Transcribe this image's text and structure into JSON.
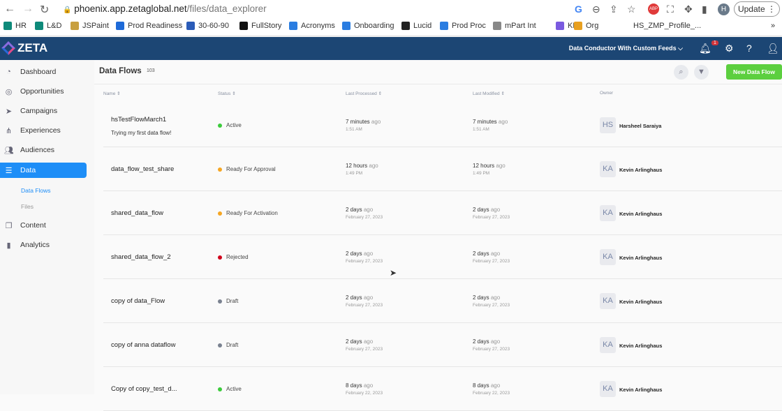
{
  "browser": {
    "url_host": "phoenix.app.zetaglobal.net",
    "url_path": "/files/data_explorer",
    "update_label": "Update",
    "profile_initial": "H",
    "bookmarks": [
      {
        "label": "HR",
        "color": "#0f8a7a"
      },
      {
        "label": "L&D",
        "color": "#0f8a7a"
      },
      {
        "label": "JSPaint",
        "color": "#c8a040"
      },
      {
        "label": "Prod Readiness",
        "color": "#1e6ad8"
      },
      {
        "label": "30-60-90",
        "color": "#2b5cb8"
      },
      {
        "label": "FullStory",
        "color": "#111111"
      },
      {
        "label": "Acronyms",
        "color": "#2a7de1"
      },
      {
        "label": "Onboarding",
        "color": "#2a7de1"
      },
      {
        "label": "Lucid",
        "color": "#222222"
      },
      {
        "label": "Prod Proc",
        "color": "#2a7de1"
      },
      {
        "label": "mPart Int",
        "color": "#888888"
      },
      {
        "label": "KB",
        "color": "#7a5ae0"
      },
      {
        "label": "Org",
        "color": "#e8a020"
      },
      {
        "label": "HS_ZMP_Profile_...",
        "color": "#ffffff"
      }
    ]
  },
  "app": {
    "logo": "ZETA",
    "account": "Data Conductor With Custom Feeds",
    "notification_count": "1",
    "brand_color": "#1c4674"
  },
  "sidebar": {
    "items": [
      {
        "label": "Dashboard",
        "icon": "gauge-icon"
      },
      {
        "label": "Opportunities",
        "icon": "target-icon"
      },
      {
        "label": "Campaigns",
        "icon": "paper-plane-icon"
      },
      {
        "label": "Experiences",
        "icon": "hierarchy-icon"
      },
      {
        "label": "Audiences",
        "icon": "people-icon"
      },
      {
        "label": "Data",
        "icon": "database-icon",
        "active": true
      },
      {
        "label": "Content",
        "icon": "copy-icon"
      },
      {
        "label": "Analytics",
        "icon": "bar-chart-icon"
      }
    ],
    "subitems": [
      {
        "label": "Data Flows",
        "active": true
      },
      {
        "label": "Files"
      }
    ]
  },
  "main": {
    "title": "Data Flows",
    "count": "103",
    "new_button": "New Data Flow",
    "columns": [
      "Name",
      "Status",
      "Last Processed",
      "Last Modified",
      "Owner"
    ],
    "rows": [
      {
        "name": "hsTestFlowMarch1",
        "description": "Trying my first data flow!",
        "status": "Active",
        "status_color": "#3ccb3c",
        "processed": "7 minutes",
        "processed_sub": "1:51 AM",
        "modified": "7 minutes",
        "modified_sub": "1:51 AM",
        "owner_initials": "HS",
        "owner": "Harsheel Saraiya"
      },
      {
        "name": "data_flow_test_share",
        "status": "Ready For Approval",
        "status_color": "#f5a623",
        "processed": "12 hours",
        "processed_sub": "1:49 PM",
        "modified": "12 hours",
        "modified_sub": "1:49 PM",
        "owner_initials": "KA",
        "owner": "Kevin Arlinghaus"
      },
      {
        "name": "shared_data_flow",
        "status": "Ready For Activation",
        "status_color": "#f5a623",
        "processed": "2 days",
        "processed_sub": "February 27, 2023",
        "modified": "2 days",
        "modified_sub": "February 27, 2023",
        "owner_initials": "KA",
        "owner": "Kevin Arlinghaus"
      },
      {
        "name": "shared_data_flow_2",
        "status": "Rejected",
        "status_color": "#d0021b",
        "processed": "2 days",
        "processed_sub": "February 27, 2023",
        "modified": "2 days",
        "modified_sub": "February 27, 2023",
        "owner_initials": "KA",
        "owner": "Kevin Arlinghaus"
      },
      {
        "name": "copy of data_Flow",
        "status": "Draft",
        "status_color": "#7a8290",
        "processed": "2 days",
        "processed_sub": "February 27, 2023",
        "modified": "2 days",
        "modified_sub": "February 27, 2023",
        "owner_initials": "KA",
        "owner": "Kevin Arlinghaus"
      },
      {
        "name": "copy of anna dataflow",
        "status": "Draft",
        "status_color": "#7a8290",
        "processed": "2 days",
        "processed_sub": "February 27, 2023",
        "modified": "2 days",
        "modified_sub": "February 27, 2023",
        "owner_initials": "KA",
        "owner": "Kevin Arlinghaus"
      },
      {
        "name": "Copy of copy_test_d...",
        "status": "Active",
        "status_color": "#3ccb3c",
        "processed": "8 days",
        "processed_sub": "February 22, 2023",
        "modified": "8 days",
        "modified_sub": "February 22, 2023",
        "owner_initials": "KA",
        "owner": "Kevin Arlinghaus"
      }
    ],
    "ago": "ago"
  }
}
